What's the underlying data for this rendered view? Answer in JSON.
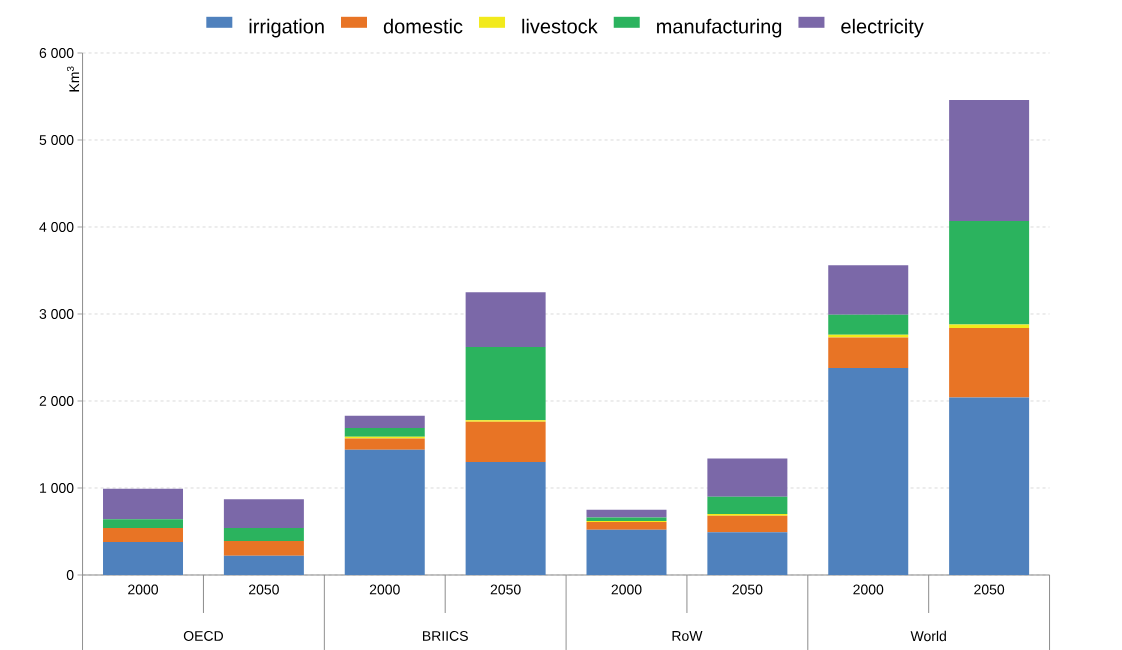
{
  "chart_data": {
    "type": "bar",
    "stacked": true,
    "ylabel": "Km$^{3}$",
    "categories": [
      "2000",
      "2050",
      "2000",
      "2050",
      "2000",
      "2050",
      "2000",
      "2050"
    ],
    "series": [
      {
        "name": "irrigation",
        "color": "#4f81bd",
        "values": [
          380,
          220,
          1440,
          1300,
          520,
          490,
          2380,
          2040
        ]
      },
      {
        "name": "domestic",
        "color": "#e87425",
        "values": [
          160,
          170,
          130,
          460,
          90,
          190,
          350,
          800
        ]
      },
      {
        "name": "livestock",
        "color": "#f2ea1c",
        "values": [
          null,
          null,
          20,
          20,
          10,
          20,
          30,
          40
        ]
      },
      {
        "name": "manufacturing",
        "color": "#2bb35e",
        "values": [
          100,
          150,
          100,
          840,
          40,
          200,
          230,
          1190
        ]
      },
      {
        "name": "electricity",
        "color": "#7b68a8",
        "values": [
          350,
          330,
          140,
          630,
          90,
          440,
          570,
          1390
        ]
      }
    ],
    "ylim": [
      0,
      6000
    ],
    "yticks": [
      0,
      {
        "value": 1000,
        "label": "1 000"
      },
      {
        "value": 2000,
        "label": "2 000"
      },
      {
        "value": 3000,
        "label": "3 000"
      },
      {
        "value": 4000,
        "label": "4 000"
      },
      {
        "value": 5000,
        "label": "5 000"
      },
      {
        "value": 6000,
        "label": "6 000"
      }
    ],
    "grid": "y",
    "legend": "top",
    "annotations": [
      "OECD",
      "BRIICS",
      "RoW",
      "World"
    ]
  }
}
